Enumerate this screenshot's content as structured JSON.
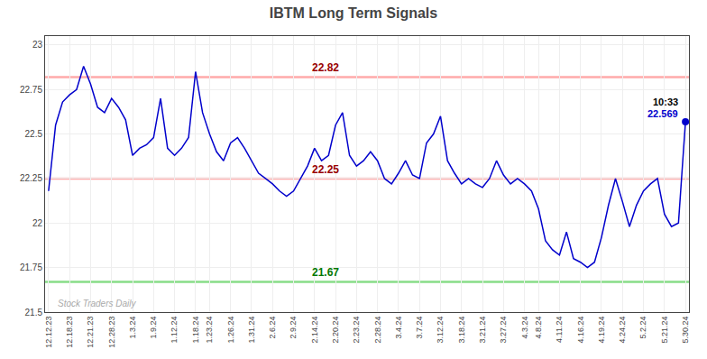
{
  "chart_data": {
    "type": "line",
    "title": "IBTM Long Term Signals",
    "categories": [
      "12.12.23",
      null,
      null,
      "12.18.23",
      null,
      null,
      "12.21.23",
      null,
      null,
      "12.28.23",
      null,
      null,
      "1.3.24",
      null,
      null,
      "1.9.24",
      null,
      null,
      "1.12.24",
      null,
      null,
      "1.18.24",
      null,
      "1.23.24",
      null,
      null,
      "1.26.24",
      null,
      null,
      "1.31.24",
      null,
      null,
      "2.6.24",
      null,
      null,
      "2.9.24",
      null,
      null,
      "2.14.24",
      null,
      null,
      "2.20.24",
      null,
      null,
      "2.23.24",
      null,
      null,
      "2.28.24",
      null,
      null,
      "3.4.24",
      null,
      null,
      "3.7.24",
      null,
      null,
      "3.12.24",
      null,
      null,
      "3.18.24",
      null,
      null,
      "3.21.24",
      null,
      null,
      "3.27.24",
      null,
      null,
      "4.3.24",
      null,
      "4.8.24",
      null,
      null,
      "4.11.24",
      null,
      null,
      "4.16.24",
      null,
      null,
      "4.19.24",
      null,
      null,
      "4.24.24",
      null,
      null,
      "5.2.24",
      null,
      null,
      "5.21.24",
      null,
      null,
      "5.30.24"
    ],
    "values": [
      22.18,
      22.55,
      22.68,
      22.72,
      22.75,
      22.88,
      22.78,
      22.65,
      22.62,
      22.7,
      22.65,
      22.58,
      22.38,
      22.42,
      22.44,
      22.48,
      22.7,
      22.42,
      22.38,
      22.42,
      22.48,
      22.85,
      22.62,
      22.5,
      22.4,
      22.35,
      22.45,
      22.48,
      22.42,
      22.35,
      22.28,
      22.25,
      22.22,
      22.18,
      22.15,
      22.18,
      22.25,
      22.32,
      22.42,
      22.35,
      22.38,
      22.55,
      22.62,
      22.38,
      22.32,
      22.35,
      22.4,
      22.35,
      22.25,
      22.22,
      22.28,
      22.35,
      22.27,
      22.25,
      22.45,
      22.5,
      22.6,
      22.35,
      22.28,
      22.22,
      22.25,
      22.22,
      22.2,
      22.25,
      22.35,
      22.27,
      22.22,
      22.25,
      22.22,
      22.18,
      22.08,
      21.9,
      21.85,
      21.82,
      21.95,
      21.8,
      21.78,
      21.75,
      21.78,
      21.92,
      22.1,
      22.25,
      22.12,
      21.98,
      22.1,
      22.18,
      22.22,
      22.25,
      22.05,
      21.98,
      22.0,
      22.569
    ],
    "color": "#0000cc",
    "ylim": [
      21.5,
      23.05
    ],
    "yticks": [
      21.5,
      21.75,
      22,
      22.25,
      22.5,
      22.75,
      23
    ],
    "grid": true,
    "hlines": [
      {
        "value": 22.82,
        "color": "#ffaaaa",
        "label": "22.82",
        "label_color": "#990000"
      },
      {
        "value": 22.25,
        "color": "#ffaaaa",
        "label": "22.25",
        "label_color": "#990000"
      },
      {
        "value": 21.67,
        "color": "#88dd88",
        "label": "21.67",
        "label_color": "#007700"
      }
    ],
    "last_point": {
      "value": 22.569,
      "time": "10:33",
      "color": "#0000cc"
    },
    "watermark": {
      "text": "Stock Traders Daily",
      "color": "#aaaaaa"
    }
  }
}
